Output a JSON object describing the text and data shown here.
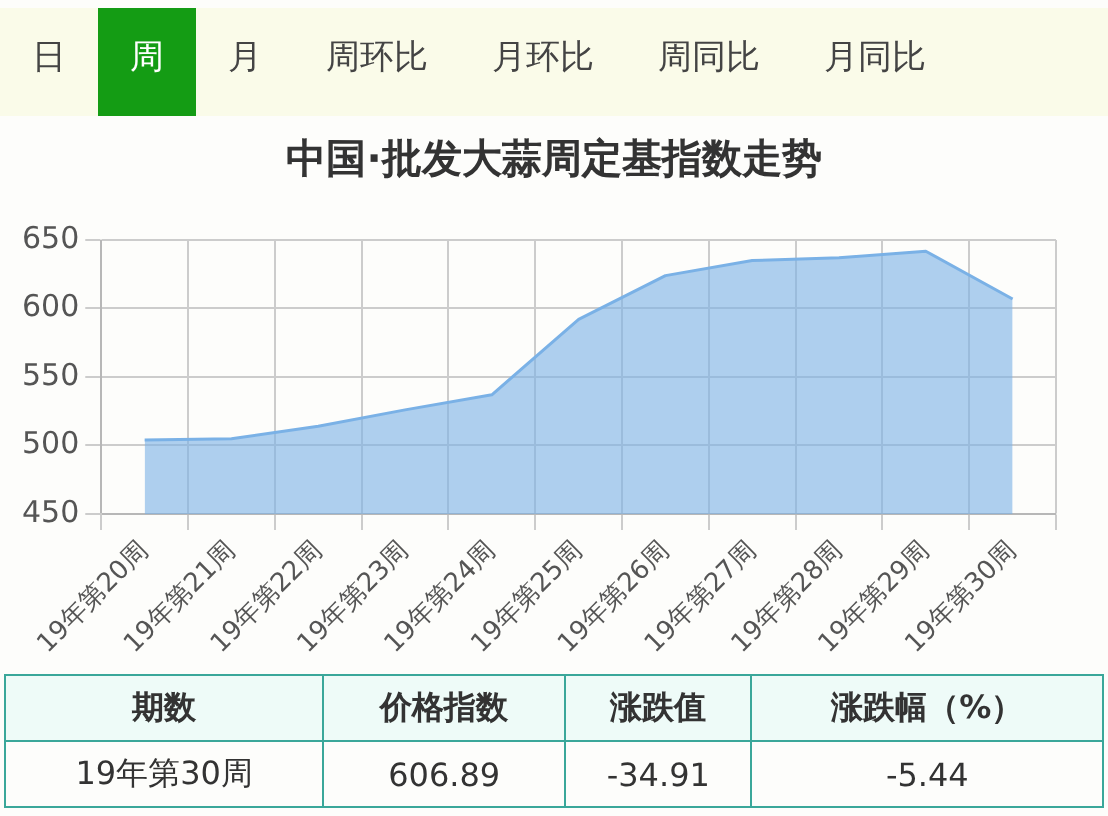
{
  "chart_data": {
    "type": "area",
    "title": "中国·批发大蒜周定基指数走势",
    "categories": [
      "19年第20周",
      "19年第21周",
      "19年第22周",
      "19年第23周",
      "19年第24周",
      "19年第25周",
      "19年第26周",
      "19年第27周",
      "19年第28周",
      "19年第29周",
      "19年第30周"
    ],
    "series": [
      {
        "color": "#7ab1e6",
        "values": [
          504,
          505,
          514,
          526,
          537,
          592,
          624,
          635,
          637,
          641.8,
          606.89
        ]
      }
    ],
    "ylim": [
      450,
      650
    ],
    "yticks": [
      450,
      500,
      550,
      600,
      650
    ],
    "grid": true,
    "legend": false,
    "annotations": [
      "日",
      "周",
      "月",
      "周环比",
      "月环比",
      "周同比",
      "月同比",
      "期数",
      "价格指数",
      "涨跌值",
      "涨跌幅（%）",
      "19年第30周",
      "606.89",
      "-34.91",
      "-5.44"
    ]
  }
}
